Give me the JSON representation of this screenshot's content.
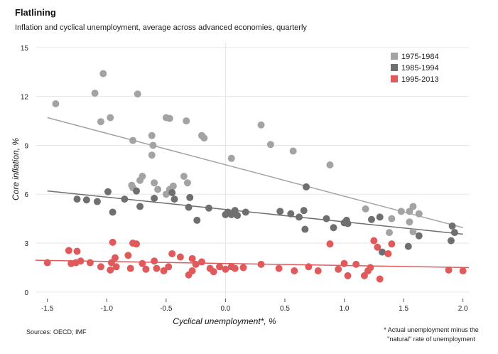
{
  "header": {
    "title": "Flatlining",
    "subtitle": "Inflation and cyclical unemployment, average across advanced economies, quarterly"
  },
  "footer": {
    "source": "Sources: OECD; IMF",
    "footnote_line1": "* Actual unemployment minus the",
    "footnote_line2": "\"natural\" rate of unemployment"
  },
  "chart_data": {
    "type": "scatter",
    "title": "",
    "xlabel": "Cyclical unemployment*, %",
    "ylabel": "Core inflation, %",
    "xlim": [
      -1.6,
      2.05
    ],
    "ylim": [
      -0.4,
      15.3
    ],
    "x_ticks": [
      -1.5,
      -1.0,
      -0.5,
      0.0,
      0.5,
      1.0,
      1.5,
      2.0
    ],
    "x_tick_labels": [
      "-1.5",
      "-1.0",
      "-0.5",
      "0.0",
      "0.5",
      "1.0",
      "1.5",
      "2.0"
    ],
    "y_ticks": [
      0,
      3,
      6,
      9,
      12,
      15
    ],
    "y_tick_labels": [
      "0",
      "3",
      "6",
      "9",
      "12",
      "15"
    ],
    "grid": true,
    "legend_position": "top-right",
    "series": [
      {
        "name": "1975-1984",
        "color": "#a3a3a3",
        "trend": [
          [
            -1.5,
            10.7
          ],
          [
            2.0,
            3.95
          ]
        ],
        "points": [
          [
            -1.43,
            11.55
          ],
          [
            -1.1,
            12.2
          ],
          [
            -1.03,
            13.4
          ],
          [
            -1.05,
            10.45
          ],
          [
            -0.97,
            10.7
          ],
          [
            -0.74,
            12.15
          ],
          [
            -0.78,
            9.3
          ],
          [
            -0.5,
            10.7
          ],
          [
            -0.47,
            10.65
          ],
          [
            -0.33,
            10.5
          ],
          [
            -0.2,
            9.6
          ],
          [
            -0.18,
            9.45
          ],
          [
            -0.62,
            9.6
          ],
          [
            -0.61,
            9.0
          ],
          [
            -0.62,
            8.4
          ],
          [
            -0.35,
            7.1
          ],
          [
            -0.32,
            6.7
          ],
          [
            -0.7,
            7.1
          ],
          [
            -0.72,
            6.85
          ],
          [
            -0.79,
            6.55
          ],
          [
            -0.78,
            6.4
          ],
          [
            -0.6,
            6.7
          ],
          [
            -0.57,
            6.3
          ],
          [
            -0.5,
            6.0
          ],
          [
            -0.47,
            6.3
          ],
          [
            -0.44,
            6.5
          ],
          [
            0.05,
            8.2
          ],
          [
            0.3,
            10.25
          ],
          [
            0.38,
            9.05
          ],
          [
            0.57,
            8.65
          ],
          [
            0.88,
            7.8
          ],
          [
            1.18,
            5.1
          ],
          [
            1.38,
            3.65
          ],
          [
            1.4,
            4.5
          ],
          [
            1.48,
            4.95
          ],
          [
            1.55,
            4.95
          ],
          [
            1.58,
            5.25
          ],
          [
            1.63,
            4.8
          ],
          [
            1.58,
            3.7
          ],
          [
            1.55,
            4.3
          ]
        ]
      },
      {
        "name": "1985-1994",
        "color": "#6f6f6f",
        "trend": [
          [
            -1.5,
            6.2
          ],
          [
            2.0,
            3.55
          ]
        ],
        "points": [
          [
            -1.25,
            5.7
          ],
          [
            -1.17,
            5.65
          ],
          [
            -1.08,
            5.55
          ],
          [
            -0.99,
            6.15
          ],
          [
            -0.95,
            4.9
          ],
          [
            -0.85,
            5.7
          ],
          [
            -0.75,
            6.2
          ],
          [
            -0.72,
            5.25
          ],
          [
            -0.6,
            5.75
          ],
          [
            -0.45,
            6.1
          ],
          [
            -0.43,
            5.7
          ],
          [
            -0.31,
            5.2
          ],
          [
            -0.3,
            5.8
          ],
          [
            -0.24,
            4.4
          ],
          [
            -0.14,
            5.15
          ],
          [
            0.0,
            4.75
          ],
          [
            0.02,
            4.9
          ],
          [
            0.05,
            4.75
          ],
          [
            0.08,
            5.0
          ],
          [
            0.1,
            4.7
          ],
          [
            0.17,
            4.9
          ],
          [
            0.46,
            4.95
          ],
          [
            0.55,
            4.8
          ],
          [
            0.62,
            4.6
          ],
          [
            0.66,
            5.0
          ],
          [
            0.67,
            3.85
          ],
          [
            0.68,
            6.45
          ],
          [
            0.85,
            4.5
          ],
          [
            0.91,
            3.95
          ],
          [
            1.0,
            4.25
          ],
          [
            1.02,
            4.4
          ],
          [
            1.03,
            4.2
          ],
          [
            1.23,
            4.45
          ],
          [
            1.3,
            4.6
          ],
          [
            1.32,
            2.45
          ],
          [
            1.54,
            2.8
          ],
          [
            1.63,
            3.45
          ],
          [
            1.91,
            4.05
          ],
          [
            1.93,
            3.65
          ],
          [
            1.9,
            3.15
          ]
        ]
      },
      {
        "name": "1995-2013",
        "color": "#e05a5c",
        "trend": [
          [
            -1.6,
            1.95
          ],
          [
            2.05,
            1.5
          ]
        ],
        "points": [
          [
            -1.5,
            1.8
          ],
          [
            -1.3,
            1.75
          ],
          [
            -1.26,
            1.8
          ],
          [
            -1.22,
            1.9
          ],
          [
            -1.14,
            1.8
          ],
          [
            -1.05,
            1.55
          ],
          [
            -0.97,
            1.35
          ],
          [
            -0.92,
            1.55
          ],
          [
            -0.96,
            1.8
          ],
          [
            -0.93,
            2.1
          ],
          [
            -0.95,
            3.05
          ],
          [
            -0.78,
            3.0
          ],
          [
            -0.75,
            2.95
          ],
          [
            -0.82,
            2.25
          ],
          [
            -0.8,
            1.45
          ],
          [
            -0.7,
            1.75
          ],
          [
            -0.67,
            1.4
          ],
          [
            -0.58,
            1.45
          ],
          [
            -0.6,
            1.9
          ],
          [
            -0.52,
            1.3
          ],
          [
            -0.48,
            1.55
          ],
          [
            -0.45,
            2.35
          ],
          [
            -0.38,
            2.15
          ],
          [
            -0.31,
            1.05
          ],
          [
            -0.28,
            1.3
          ],
          [
            -0.28,
            2.05
          ],
          [
            -0.25,
            1.7
          ],
          [
            -0.2,
            1.85
          ],
          [
            -0.13,
            1.45
          ],
          [
            -0.1,
            1.25
          ],
          [
            -0.05,
            1.55
          ],
          [
            0.0,
            1.4
          ],
          [
            0.05,
            1.55
          ],
          [
            0.08,
            1.45
          ],
          [
            0.15,
            1.5
          ],
          [
            0.3,
            1.7
          ],
          [
            0.45,
            1.45
          ],
          [
            0.58,
            1.3
          ],
          [
            0.7,
            1.55
          ],
          [
            0.78,
            1.3
          ],
          [
            0.88,
            2.95
          ],
          [
            0.95,
            1.4
          ],
          [
            1.0,
            1.75
          ],
          [
            1.03,
            1.0
          ],
          [
            1.1,
            1.7
          ],
          [
            1.17,
            1.0
          ],
          [
            1.2,
            1.3
          ],
          [
            1.22,
            1.5
          ],
          [
            1.25,
            3.15
          ],
          [
            1.28,
            2.75
          ],
          [
            1.3,
            0.8
          ],
          [
            1.37,
            2.35
          ],
          [
            1.4,
            2.95
          ],
          [
            1.88,
            1.35
          ],
          [
            2.0,
            1.3
          ],
          [
            -1.25,
            2.5
          ],
          [
            -1.32,
            2.55
          ]
        ]
      }
    ]
  }
}
